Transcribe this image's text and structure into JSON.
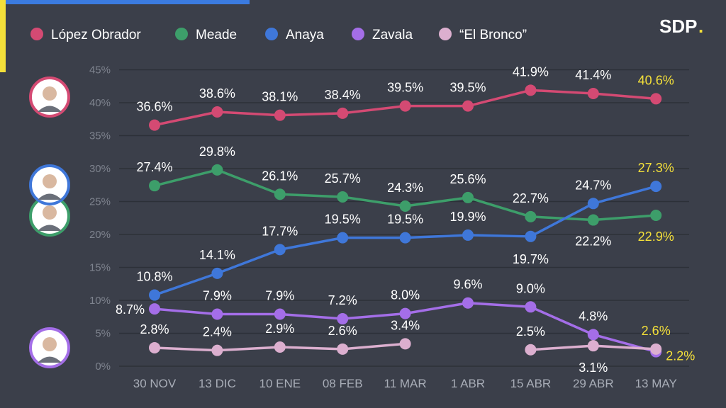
{
  "logo": {
    "text": "SDP",
    "dot": "."
  },
  "colors": {
    "background": "#3b3f4a",
    "grid": "#2c3038",
    "label": "#ffffff",
    "highlight": "#f4e03a",
    "axis_text": "#7e838e"
  },
  "avatars": [
    {
      "name": "López Obrador",
      "icon": "portrait-icon",
      "color": "#d44a73"
    },
    {
      "name": "Anaya",
      "icon": "portrait-icon",
      "color": "#3f77d9"
    },
    {
      "name": "Meade",
      "icon": "portrait-icon",
      "color": "#3d9e6a"
    },
    {
      "name": "Zavala",
      "icon": "portrait-icon",
      "color": "#a46ee8"
    }
  ],
  "chart_data": {
    "type": "line",
    "categories": [
      "30 NOV",
      "13 DIC",
      "10 ENE",
      "08 FEB",
      "11 MAR",
      "1 ABR",
      "15 ABR",
      "29 ABR",
      "13 MAY"
    ],
    "ylim": [
      0,
      45
    ],
    "yticks": [
      "0%",
      "5%",
      "10%",
      "15%",
      "20%",
      "25%",
      "30%",
      "35%",
      "40%",
      "45%"
    ],
    "grid": true,
    "legend_position": "top-left",
    "series": [
      {
        "name": "López Obrador",
        "color": "#d44a73",
        "values": [
          36.6,
          38.6,
          38.1,
          38.4,
          39.5,
          39.5,
          41.9,
          41.4,
          40.6
        ],
        "labels": [
          "36.6%",
          "38.6%",
          "38.1%",
          "38.4%",
          "39.5%",
          "39.5%",
          "41.9%",
          "41.4%",
          "40.6%"
        ]
      },
      {
        "name": "Meade",
        "color": "#3d9e6a",
        "values": [
          27.4,
          29.8,
          26.1,
          25.7,
          24.3,
          25.6,
          22.7,
          22.2,
          22.9
        ],
        "labels": [
          "27.4%",
          "29.8%",
          "26.1%",
          "25.7%",
          "24.3%",
          "25.6%",
          "22.7%",
          "22.2%",
          "22.9%"
        ]
      },
      {
        "name": "Anaya",
        "color": "#3f77d9",
        "values": [
          10.8,
          14.1,
          17.7,
          19.5,
          19.5,
          19.9,
          19.7,
          24.7,
          27.3
        ],
        "labels": [
          "10.8%",
          "14.1%",
          "17.7%",
          "19.5%",
          "19.5%",
          "19.9%",
          "19.7%",
          "24.7%",
          "27.3%"
        ]
      },
      {
        "name": "Zavala",
        "color": "#a46ee8",
        "values": [
          8.7,
          7.9,
          7.9,
          7.2,
          8.0,
          9.6,
          9.0,
          4.8,
          2.2
        ],
        "labels": [
          "8.7%",
          "7.9%",
          "7.9%",
          "7.2%",
          "8.0%",
          "9.6%",
          "9.0%",
          "4.8%",
          "2.2%"
        ]
      },
      {
        "name": "“El Bronco”",
        "color": "#dcafcf",
        "values": [
          2.8,
          2.4,
          2.9,
          2.6,
          3.4,
          null,
          2.5,
          3.1,
          2.6
        ],
        "labels": [
          "2.8%",
          "2.4%",
          "2.9%",
          "2.6%",
          "3.4%",
          null,
          "2.5%",
          "3.1%",
          "2.6%"
        ]
      }
    ]
  }
}
